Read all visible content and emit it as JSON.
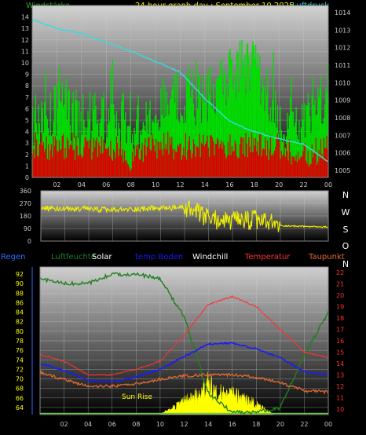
{
  "header": {
    "left_label": "Windstärke",
    "title": "24 hour graph day : September 10 2025",
    "right_label": "Luftdruck"
  },
  "colors": {
    "wind_label": "#2aa02a",
    "title": "#f0f000",
    "pressure_label": "#33cccc",
    "gust": "#00dd00",
    "wind": "#dd0000",
    "pressure": "#33dddd",
    "direction": "#f0f000",
    "grid": "#cccccc",
    "tick_text": "#c8c8c8",
    "axis_text_yellow": "#ffff00",
    "axis_text_red": "#ff3030",
    "solar": "#ffff00",
    "humidity": "#208020",
    "temperature": "#ff3030",
    "dewpoint": "#e06a30",
    "ground_temp": "#1a1aff",
    "regen": "#2d6bff",
    "sun_rise_text": "#ffff00"
  },
  "x_axis": {
    "ticks": [
      "02",
      "04",
      "06",
      "08",
      "10",
      "12",
      "14",
      "16",
      "18",
      "20",
      "22",
      "00"
    ]
  },
  "direction_labels": [
    "N",
    "W",
    "S",
    "O",
    "N"
  ],
  "direction_ticks": [
    "360",
    "270",
    "180",
    "90",
    "0"
  ],
  "legend": {
    "regen": "Regen",
    "humidity": "Luftfeuchte",
    "solar": "Solar",
    "ground_temp": "temp Boden",
    "windchill": "Windchill",
    "temperature": "Temperatur",
    "dewpoint": "Taupunkt"
  },
  "annotations": {
    "sun_rise": "Sun Rise"
  },
  "chart_data": [
    {
      "type": "line",
      "title": "24 hour graph day : September 10 2025",
      "x": [
        0,
        2,
        4,
        6,
        8,
        10,
        12,
        14,
        16,
        18,
        20,
        22,
        24
      ],
      "xlabel": "",
      "ylabel_left": "Windstärke",
      "ylabel_right": "Luftdruck",
      "y_left_ticks": [
        0,
        1,
        2,
        3,
        4,
        5,
        6,
        7,
        8,
        9,
        10,
        11,
        12,
        13,
        14
      ],
      "y_left_lim": [
        0,
        15
      ],
      "y_right_ticks": [
        1005,
        1006,
        1007,
        1008,
        1009,
        1010,
        1011,
        1012,
        1013,
        1014
      ],
      "y_right_lim": [
        1004.6,
        1014.4
      ],
      "series": [
        {
          "name": "Luftdruck",
          "axis": "right",
          "values": [
            1013.6,
            1013.1,
            1012.8,
            1012.3,
            1011.8,
            1011.2,
            1010.6,
            1009.1,
            1007.8,
            1007.2,
            1006.8,
            1006.5,
            1005.5
          ]
        },
        {
          "name": "Windstärke",
          "axis": "left",
          "values": [
            3,
            3,
            3,
            3,
            2,
            3,
            3,
            3,
            3,
            3,
            3,
            2,
            3
          ]
        },
        {
          "name": "Gust",
          "axis": "left",
          "values": [
            5,
            6,
            5,
            5,
            5,
            5,
            7,
            7,
            9,
            10,
            5,
            5,
            7
          ]
        }
      ],
      "grid": true
    },
    {
      "type": "line",
      "title": "",
      "x": [
        0,
        2,
        4,
        6,
        8,
        10,
        12,
        13,
        14,
        16,
        18,
        20,
        22,
        24
      ],
      "series": [
        {
          "name": "Wind direction",
          "values": [
            240,
            230,
            230,
            220,
            230,
            235,
            240,
            200,
            160,
            140,
            150,
            110,
            105,
            100
          ]
        }
      ],
      "y_ticks": [
        360,
        270,
        180,
        90,
        0
      ],
      "ylim": [
        0,
        360
      ],
      "right_labels": [
        "N",
        "W",
        "S",
        "O",
        "N"
      ]
    },
    {
      "type": "line",
      "title": "",
      "x": [
        0,
        2,
        4,
        6,
        8,
        10,
        12,
        14,
        16,
        18,
        20,
        22,
        24
      ],
      "y_left_ticks": [
        64,
        66,
        68,
        70,
        72,
        74,
        76,
        78,
        80,
        82,
        84,
        86,
        88,
        90,
        92
      ],
      "y_left_lim": [
        62.5,
        93.5
      ],
      "y_right_ticks": [
        10,
        11,
        12,
        13,
        14,
        15,
        16,
        17,
        18,
        19,
        20,
        21,
        22
      ],
      "y_right_lim": [
        9.5,
        22.5
      ],
      "series": [
        {
          "name": "Luftfeuchte",
          "axis": "left",
          "values": [
            91,
            90,
            90,
            92,
            92,
            91,
            83,
            67,
            63,
            63,
            64,
            75,
            84
          ]
        },
        {
          "name": "Temperatur",
          "axis": "right",
          "values": [
            14.8,
            14.2,
            13.0,
            13.0,
            13.5,
            14.2,
            16.5,
            19.2,
            19.9,
            19.0,
            17.0,
            15.0,
            14.5
          ]
        },
        {
          "name": "temp Boden",
          "axis": "right",
          "values": [
            14.0,
            13.4,
            12.5,
            12.4,
            12.8,
            13.5,
            14.6,
            15.7,
            15.8,
            15.3,
            14.5,
            13.3,
            13.0
          ]
        },
        {
          "name": "Taupunkt",
          "axis": "right",
          "values": [
            13.2,
            12.6,
            12.0,
            12.0,
            12.2,
            12.6,
            12.9,
            13.0,
            13.0,
            12.8,
            12.3,
            11.6,
            11.5
          ]
        },
        {
          "name": "Solar",
          "axis": "left",
          "values": [
            62.5,
            62.5,
            62.5,
            62.5,
            62.5,
            63,
            66,
            70,
            68,
            66,
            63,
            62.5,
            62.5
          ]
        }
      ],
      "grid": true
    }
  ]
}
